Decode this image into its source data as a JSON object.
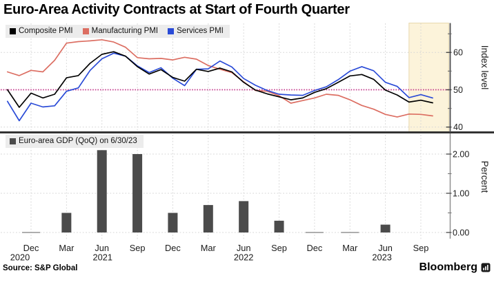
{
  "page": {
    "title": "Euro-Area Activity Contracts at Start of Fourth Quarter",
    "source": "Source: S&P Global",
    "brand": "Bloomberg"
  },
  "colors": {
    "composite": "#000000",
    "manufacturing": "#dc6e62",
    "services": "#2a4bd7",
    "reference_line": "#c43a8c",
    "highlight_band_fill": "#fcf3da",
    "highlight_band_border": "#e8d8ad",
    "gdp_bar": "#4b4b4b",
    "zero_bar_dash": "#9b9b9b",
    "gridline": "#d6d6d6",
    "separator": "#333333",
    "axis_top": "#4d4d4d",
    "axis_bottom": "#8f8f8f",
    "legend_bg": "#ececec",
    "tick_text": "#1a1a1a"
  },
  "x_axis": {
    "months": [
      "Dec",
      "Mar",
      "Jun",
      "Sep",
      "Dec",
      "Mar",
      "Jun",
      "Sep",
      "Dec",
      "Mar",
      "Jun",
      "Sep"
    ],
    "years": [
      {
        "label": "2020",
        "tick": 0
      },
      {
        "label": "2021",
        "tick": 2
      },
      {
        "label": "2022",
        "tick": 6
      },
      {
        "label": "2023",
        "tick": 10
      }
    ]
  },
  "chart_data": [
    {
      "type": "line",
      "panel": "top",
      "ylabel": "Index level",
      "yticks": [
        "40",
        "50",
        "60"
      ],
      "minor_yticks": [
        45,
        55,
        65
      ],
      "ylim": [
        38.5,
        67.5
      ],
      "grid": "dotted",
      "frequency": "monthly",
      "x_start": "Oct 2020",
      "x_end": "Oct 2023",
      "reference_line": 50,
      "highlight_band": {
        "from": "Aug 2023",
        "to": "Oct 2023"
      },
      "legend_position": "top-left",
      "series": [
        {
          "name": "Composite PMI",
          "color": "#000000",
          "values": [
            50.0,
            45.3,
            49.1,
            47.8,
            48.8,
            53.2,
            53.8,
            57.1,
            59.5,
            60.2,
            59.0,
            56.2,
            54.2,
            55.4,
            53.3,
            52.3,
            55.5,
            54.9,
            55.8,
            54.8,
            52.0,
            49.9,
            48.9,
            48.1,
            47.3,
            47.8,
            49.3,
            50.3,
            52.0,
            53.7,
            54.1,
            52.8,
            49.9,
            48.6,
            46.7,
            47.2,
            46.5
          ]
        },
        {
          "name": "Manufacturing PMI",
          "color": "#dc6e62",
          "values": [
            54.8,
            53.8,
            55.2,
            54.8,
            57.9,
            62.5,
            62.9,
            63.1,
            63.4,
            62.8,
            61.4,
            58.6,
            58.3,
            58.4,
            58.0,
            58.7,
            58.2,
            56.5,
            55.5,
            54.6,
            52.1,
            49.8,
            49.6,
            48.4,
            46.4,
            47.1,
            47.8,
            48.8,
            48.5,
            47.3,
            45.8,
            44.8,
            43.4,
            42.7,
            43.5,
            43.4,
            43.0
          ]
        },
        {
          "name": "Services PMI",
          "color": "#2a4bd7",
          "values": [
            46.9,
            41.7,
            46.4,
            45.4,
            45.7,
            49.6,
            50.5,
            55.2,
            58.3,
            59.8,
            59.0,
            56.4,
            54.6,
            55.9,
            53.1,
            51.1,
            55.5,
            55.6,
            57.7,
            56.1,
            53.0,
            51.2,
            49.8,
            48.8,
            48.6,
            48.5,
            49.8,
            50.8,
            52.7,
            55.0,
            56.2,
            55.1,
            52.0,
            50.9,
            47.9,
            48.7,
            47.8
          ]
        }
      ]
    },
    {
      "type": "bar",
      "panel": "bottom",
      "legend_label": "Euro-area GDP (QoQ) on 6/30/23",
      "ylabel": "Percent",
      "yticks": [
        "0.00",
        "1.00",
        "2.00"
      ],
      "minor_yticks": [
        0.5,
        1.5
      ],
      "ylim": [
        -0.15,
        2.55
      ],
      "grid": "dotted",
      "categories": [
        "Dec 2020",
        "Mar 2021",
        "Jun 2021",
        "Sep 2021",
        "Dec 2021",
        "Mar 2022",
        "Jun 2022",
        "Sep 2022",
        "Dec 2022",
        "Mar 2023",
        "Jun 2023"
      ],
      "values": [
        0.0,
        0.5,
        2.1,
        2.0,
        0.5,
        0.7,
        0.8,
        0.3,
        0.0,
        0.0,
        0.2
      ]
    }
  ]
}
